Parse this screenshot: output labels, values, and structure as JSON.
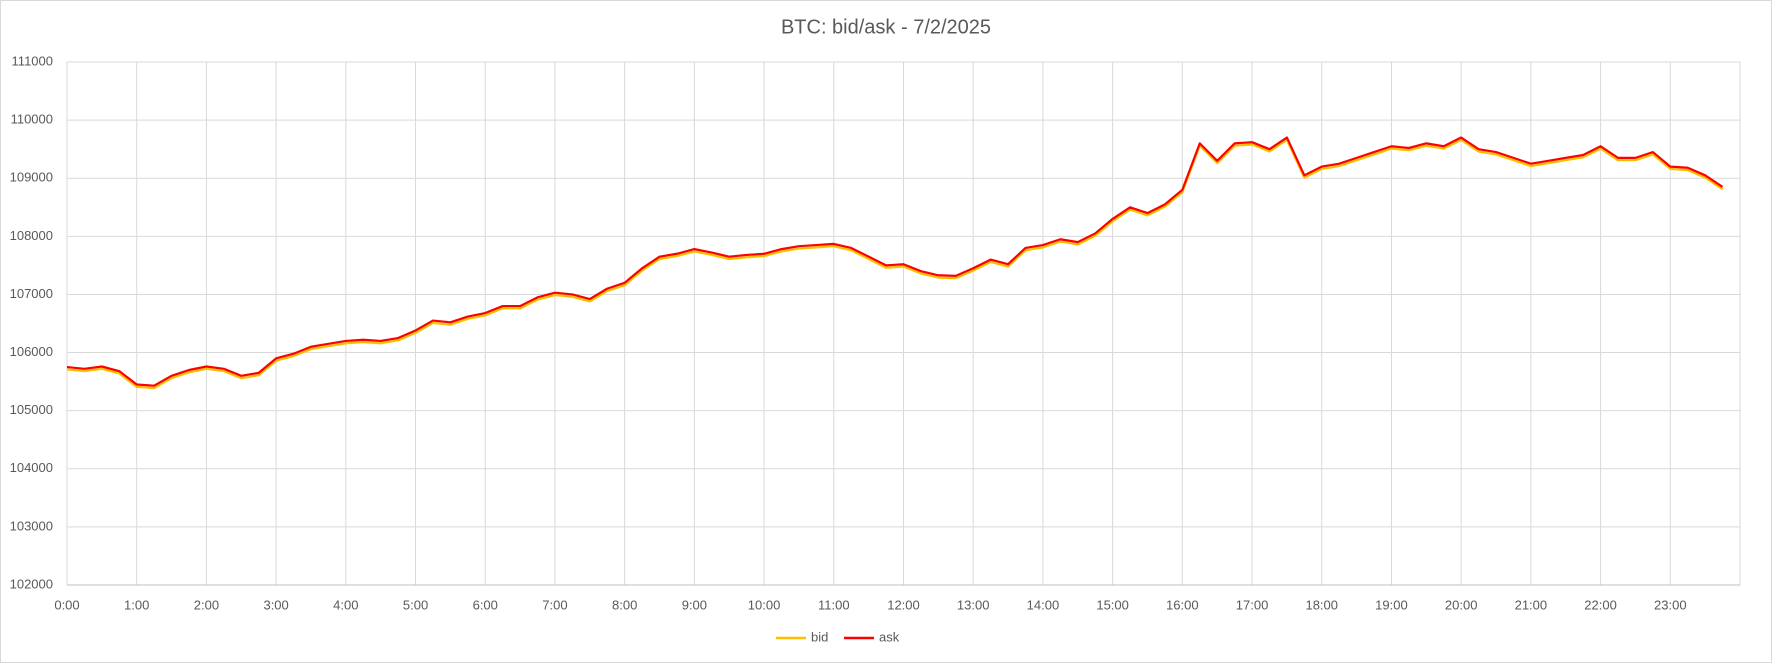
{
  "chart_data": {
    "type": "line",
    "title": "BTC: bid/ask - 7/2/2025",
    "x": [
      0,
      0.25,
      0.5,
      0.75,
      1,
      1.25,
      1.5,
      1.75,
      2,
      2.25,
      2.5,
      2.75,
      3,
      3.25,
      3.5,
      3.75,
      4,
      4.25,
      4.5,
      4.75,
      5,
      5.25,
      5.5,
      5.75,
      6,
      6.25,
      6.5,
      6.75,
      7,
      7.25,
      7.5,
      7.75,
      8,
      8.25,
      8.5,
      8.75,
      9,
      9.25,
      9.5,
      9.75,
      10,
      10.25,
      10.5,
      10.75,
      11,
      11.25,
      11.5,
      11.75,
      12,
      12.25,
      12.5,
      12.75,
      13,
      13.25,
      13.5,
      13.75,
      14,
      14.25,
      14.5,
      14.75,
      15,
      15.25,
      15.5,
      15.75,
      16,
      16.25,
      16.5,
      16.75,
      17,
      17.25,
      17.5,
      17.75,
      18,
      18.25,
      18.5,
      18.75,
      19,
      19.25,
      19.5,
      19.75,
      20,
      20.25,
      20.5,
      20.75,
      21,
      21.25,
      21.5,
      21.75,
      22,
      22.25,
      22.5,
      22.75,
      23,
      23.25,
      23.5,
      23.75
    ],
    "series": [
      {
        "name": "bid",
        "color": "#ffc000",
        "values": [
          105710,
          105680,
          105720,
          105640,
          105410,
          105390,
          105560,
          105660,
          105720,
          105680,
          105560,
          105610,
          105860,
          105940,
          106060,
          106110,
          106160,
          106180,
          106160,
          106210,
          106340,
          106510,
          106480,
          106580,
          106640,
          106760,
          106760,
          106910,
          106990,
          106960,
          106880,
          107060,
          107160,
          107410,
          107610,
          107660,
          107740,
          107680,
          107610,
          107640,
          107660,
          107740,
          107790,
          107810,
          107830,
          107760,
          107610,
          107460,
          107480,
          107360,
          107290,
          107280,
          107410,
          107560,
          107480,
          107760,
          107810,
          107910,
          107860,
          108010,
          108260,
          108460,
          108360,
          108510,
          108760,
          109560,
          109260,
          109560,
          109580,
          109460,
          109660,
          109010,
          109160,
          109210,
          109310,
          109410,
          109510,
          109480,
          109560,
          109510,
          109660,
          109460,
          109410,
          109310,
          109210,
          109260,
          109310,
          109360,
          109510,
          109310,
          109310,
          109410,
          109160,
          109140,
          109010,
          108810
        ]
      },
      {
        "name": "ask",
        "color": "#ff0000",
        "values": [
          105750,
          105720,
          105760,
          105680,
          105450,
          105430,
          105600,
          105700,
          105760,
          105720,
          105600,
          105650,
          105900,
          105980,
          106100,
          106150,
          106200,
          106220,
          106200,
          106250,
          106380,
          106550,
          106520,
          106620,
          106680,
          106800,
          106800,
          106950,
          107030,
          107000,
          106920,
          107100,
          107200,
          107450,
          107650,
          107700,
          107780,
          107720,
          107650,
          107680,
          107700,
          107780,
          107830,
          107850,
          107870,
          107800,
          107650,
          107500,
          107520,
          107400,
          107330,
          107320,
          107450,
          107600,
          107520,
          107800,
          107850,
          107950,
          107900,
          108050,
          108300,
          108500,
          108400,
          108550,
          108800,
          109600,
          109300,
          109600,
          109620,
          109500,
          109700,
          109050,
          109200,
          109250,
          109350,
          109450,
          109550,
          109520,
          109600,
          109550,
          109700,
          109500,
          109450,
          109350,
          109250,
          109300,
          109350,
          109400,
          109550,
          109350,
          109350,
          109450,
          109200,
          109180,
          109050,
          108850
        ]
      }
    ],
    "xlim": [
      0,
      24
    ],
    "xticks": [
      {
        "value": 0,
        "label": "0:00"
      },
      {
        "value": 1,
        "label": "1:00"
      },
      {
        "value": 2,
        "label": "2:00"
      },
      {
        "value": 3,
        "label": "3:00"
      },
      {
        "value": 4,
        "label": "4:00"
      },
      {
        "value": 5,
        "label": "5:00"
      },
      {
        "value": 6,
        "label": "6:00"
      },
      {
        "value": 7,
        "label": "7:00"
      },
      {
        "value": 8,
        "label": "8:00"
      },
      {
        "value": 9,
        "label": "9:00"
      },
      {
        "value": 10,
        "label": "10:00"
      },
      {
        "value": 11,
        "label": "11:00"
      },
      {
        "value": 12,
        "label": "12:00"
      },
      {
        "value": 13,
        "label": "13:00"
      },
      {
        "value": 14,
        "label": "14:00"
      },
      {
        "value": 15,
        "label": "15:00"
      },
      {
        "value": 16,
        "label": "16:00"
      },
      {
        "value": 17,
        "label": "17:00"
      },
      {
        "value": 18,
        "label": "18:00"
      },
      {
        "value": 19,
        "label": "19:00"
      },
      {
        "value": 20,
        "label": "20:00"
      },
      {
        "value": 21,
        "label": "21:00"
      },
      {
        "value": 22,
        "label": "22:00"
      },
      {
        "value": 23,
        "label": "23:00"
      }
    ],
    "ylim": [
      102000,
      111000
    ],
    "yticks": [
      102000,
      103000,
      104000,
      105000,
      106000,
      107000,
      108000,
      109000,
      110000,
      111000
    ],
    "grid": true,
    "legend": "bottom"
  }
}
